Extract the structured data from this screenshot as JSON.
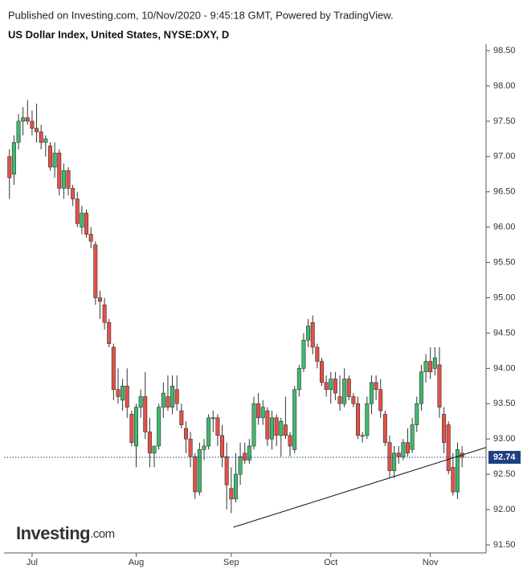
{
  "header": {
    "published": "Published on Investing.com, 10/Nov/2020 - 9:45:18 GMT, Powered by TradingView."
  },
  "logo": {
    "name": "Investing",
    "suffix": ".com"
  },
  "chart_data": {
    "type": "candlestick",
    "title": "US Dollar Index, United States, NYSE:DXY, D",
    "up_color": "#3fb96e",
    "down_color": "#e55046",
    "candles": [
      [
        97.0,
        97.1,
        96.4,
        96.7
      ],
      [
        96.75,
        97.3,
        96.6,
        97.2
      ],
      [
        97.2,
        97.6,
        97.1,
        97.5
      ],
      [
        97.5,
        97.7,
        97.3,
        97.55
      ],
      [
        97.55,
        97.8,
        97.45,
        97.5
      ],
      [
        97.5,
        97.65,
        97.3,
        97.4
      ],
      [
        97.4,
        97.75,
        97.2,
        97.35
      ],
      [
        97.35,
        97.45,
        97.1,
        97.2
      ],
      [
        97.2,
        97.3,
        97.0,
        97.25
      ],
      [
        97.15,
        97.2,
        96.8,
        96.85
      ],
      [
        96.85,
        97.2,
        96.7,
        97.05
      ],
      [
        97.05,
        97.1,
        96.45,
        96.55
      ],
      [
        96.55,
        96.9,
        96.4,
        96.8
      ],
      [
        96.8,
        96.85,
        96.45,
        96.55
      ],
      [
        96.55,
        96.6,
        96.3,
        96.4
      ],
      [
        96.4,
        96.5,
        96.0,
        96.05
      ],
      [
        96.0,
        96.3,
        95.9,
        96.2
      ],
      [
        96.2,
        96.25,
        95.85,
        95.9
      ],
      [
        95.9,
        96.0,
        95.7,
        95.8
      ],
      [
        95.75,
        95.8,
        94.9,
        95.0
      ],
      [
        95.0,
        95.1,
        94.7,
        94.95
      ],
      [
        94.9,
        95.0,
        94.55,
        94.65
      ],
      [
        94.65,
        94.7,
        94.3,
        94.35
      ],
      [
        94.3,
        94.35,
        93.55,
        93.7
      ],
      [
        93.7,
        94.0,
        93.5,
        93.6
      ],
      [
        93.55,
        93.85,
        93.4,
        93.75
      ],
      [
        93.75,
        94.0,
        93.3,
        93.45
      ],
      [
        93.35,
        93.4,
        92.9,
        92.95
      ],
      [
        92.9,
        93.5,
        92.6,
        93.45
      ],
      [
        93.45,
        93.7,
        93.3,
        93.6
      ],
      [
        93.6,
        93.95,
        93.0,
        93.1
      ],
      [
        93.1,
        93.3,
        92.6,
        92.8
      ],
      [
        92.8,
        92.9,
        92.6,
        92.9
      ],
      [
        92.9,
        93.5,
        92.85,
        93.45
      ],
      [
        93.45,
        93.8,
        93.3,
        93.65
      ],
      [
        93.6,
        93.9,
        93.4,
        93.45
      ],
      [
        93.45,
        93.9,
        93.35,
        93.75
      ],
      [
        93.7,
        93.9,
        93.4,
        93.5
      ],
      [
        93.4,
        93.5,
        93.15,
        93.2
      ],
      [
        93.15,
        93.25,
        92.8,
        93.0
      ],
      [
        93.0,
        93.1,
        92.6,
        92.75
      ],
      [
        92.75,
        92.8,
        92.15,
        92.25
      ],
      [
        92.25,
        92.95,
        92.2,
        92.85
      ],
      [
        92.85,
        93.0,
        92.7,
        92.9
      ],
      [
        92.9,
        93.35,
        92.85,
        93.3
      ],
      [
        93.3,
        93.4,
        93.1,
        93.3
      ],
      [
        93.3,
        93.35,
        92.9,
        93.05
      ],
      [
        93.05,
        93.2,
        92.6,
        92.75
      ],
      [
        92.75,
        92.95,
        92.0,
        92.35
      ],
      [
        92.3,
        92.6,
        91.95,
        92.15
      ],
      [
        92.15,
        92.8,
        92.1,
        92.5
      ],
      [
        92.5,
        92.95,
        92.35,
        92.75
      ],
      [
        92.8,
        92.95,
        92.65,
        92.7
      ],
      [
        92.7,
        93.0,
        92.65,
        92.9
      ],
      [
        92.9,
        93.6,
        92.85,
        93.5
      ],
      [
        93.5,
        93.65,
        93.2,
        93.3
      ],
      [
        93.3,
        93.55,
        93.2,
        93.45
      ],
      [
        93.4,
        93.45,
        92.9,
        93.0
      ],
      [
        93.0,
        93.4,
        92.85,
        93.3
      ],
      [
        93.3,
        93.35,
        92.9,
        93.05
      ],
      [
        93.05,
        93.3,
        92.75,
        93.25
      ],
      [
        93.2,
        93.6,
        93.0,
        93.05
      ],
      [
        93.05,
        93.1,
        92.75,
        92.9
      ],
      [
        92.85,
        93.75,
        92.8,
        93.7
      ],
      [
        93.7,
        94.05,
        93.6,
        94.0
      ],
      [
        94.0,
        94.5,
        93.95,
        94.4
      ],
      [
        94.4,
        94.7,
        94.3,
        94.6
      ],
      [
        94.65,
        94.75,
        94.2,
        94.3
      ],
      [
        94.3,
        94.35,
        94.0,
        94.1
      ],
      [
        94.1,
        94.15,
        93.75,
        93.8
      ],
      [
        93.8,
        93.9,
        93.6,
        93.7
      ],
      [
        93.7,
        93.95,
        93.5,
        93.85
      ],
      [
        93.85,
        93.95,
        93.55,
        93.65
      ],
      [
        93.6,
        93.9,
        93.4,
        93.5
      ],
      [
        93.5,
        94.0,
        93.45,
        93.85
      ],
      [
        93.85,
        93.9,
        93.55,
        93.6
      ],
      [
        93.6,
        93.65,
        93.45,
        93.5
      ],
      [
        93.5,
        93.6,
        93.0,
        93.05
      ],
      [
        93.05,
        93.1,
        92.95,
        93.05
      ],
      [
        93.05,
        93.6,
        93.0,
        93.5
      ],
      [
        93.5,
        93.9,
        93.35,
        93.8
      ],
      [
        93.8,
        93.9,
        93.55,
        93.7
      ],
      [
        93.7,
        93.85,
        93.3,
        93.4
      ],
      [
        93.35,
        93.4,
        92.9,
        92.95
      ],
      [
        92.95,
        93.05,
        92.45,
        92.55
      ],
      [
        92.55,
        92.9,
        92.45,
        92.8
      ],
      [
        92.8,
        92.9,
        92.65,
        92.75
      ],
      [
        92.75,
        93.0,
        92.7,
        92.95
      ],
      [
        92.95,
        93.15,
        92.75,
        92.8
      ],
      [
        92.85,
        93.3,
        92.8,
        93.2
      ],
      [
        93.2,
        93.6,
        93.1,
        93.5
      ],
      [
        93.5,
        94.05,
        93.4,
        93.95
      ],
      [
        93.95,
        94.2,
        93.8,
        94.1
      ],
      [
        94.1,
        94.3,
        93.85,
        93.95
      ],
      [
        94.0,
        94.3,
        93.9,
        94.15
      ],
      [
        94.05,
        94.3,
        93.3,
        93.45
      ],
      [
        93.35,
        93.45,
        92.8,
        92.95
      ],
      [
        93.2,
        93.25,
        92.5,
        92.55
      ],
      [
        92.6,
        92.8,
        92.2,
        92.25
      ],
      [
        92.25,
        92.95,
        92.15,
        92.85
      ],
      [
        92.8,
        92.9,
        92.6,
        92.74
      ]
    ],
    "last_price": {
      "value": 92.74,
      "label": "92.74",
      "color": "#1f3f80"
    },
    "trendline": {
      "x": [
        49.5,
        105.3
      ],
      "y": [
        91.75,
        92.88
      ]
    },
    "xlim": [
      -1.2,
      105.3
    ],
    "xticks": [
      {
        "value": 5,
        "label": "Jul"
      },
      {
        "value": 28,
        "label": "Aug"
      },
      {
        "value": 49,
        "label": "Sep"
      },
      {
        "value": 71,
        "label": "Oct"
      },
      {
        "value": 93,
        "label": "Nov"
      }
    ],
    "ylim": [
      91.5,
      98.5
    ],
    "yticks": [
      {
        "value": 91.5,
        "label": "91.50"
      },
      {
        "value": 92,
        "label": "92.00"
      },
      {
        "value": 92.5,
        "label": "92.50"
      },
      {
        "value": 93,
        "label": "93.00"
      },
      {
        "value": 93.5,
        "label": "93.50"
      },
      {
        "value": 94,
        "label": "94.00"
      },
      {
        "value": 94.5,
        "label": "94.50"
      },
      {
        "value": 95,
        "label": "95.00"
      },
      {
        "value": 95.5,
        "label": "95.50"
      },
      {
        "value": 96,
        "label": "96.00"
      },
      {
        "value": 96.5,
        "label": "96.50"
      },
      {
        "value": 97,
        "label": "97.00"
      },
      {
        "value": 97.5,
        "label": "97.50"
      },
      {
        "value": 98,
        "label": "98.00"
      },
      {
        "value": 98.5,
        "label": "98.50"
      }
    ]
  }
}
